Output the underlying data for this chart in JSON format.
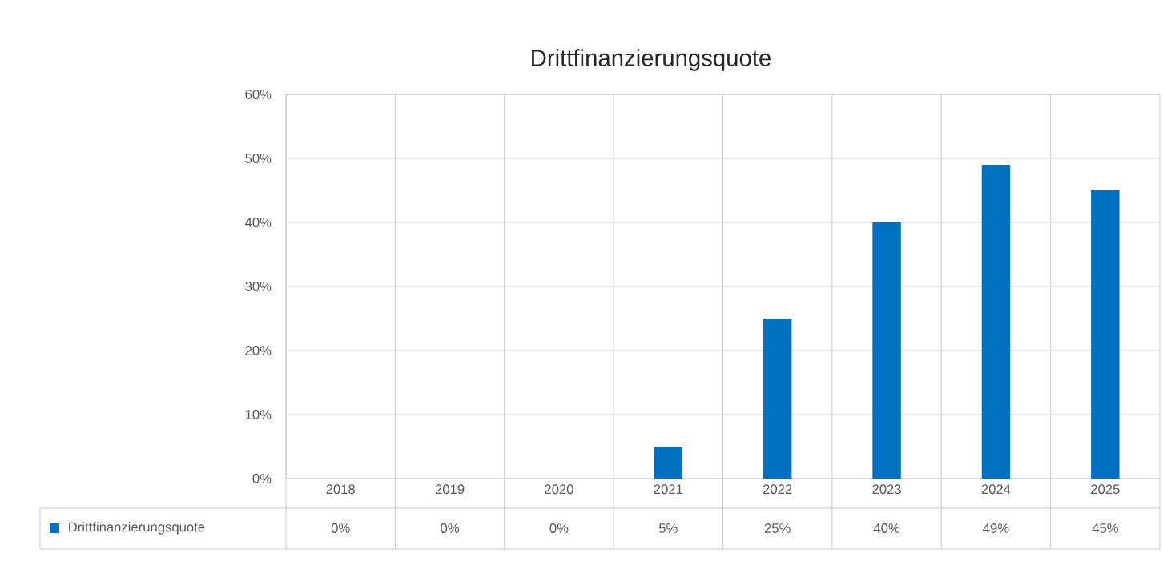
{
  "chart_data": {
    "type": "bar",
    "title": "Drittfinanzierungsquote",
    "categories": [
      "2018",
      "2019",
      "2020",
      "2021",
      "2022",
      "2023",
      "2024",
      "2025"
    ],
    "series": [
      {
        "name": "Drittfinanzierungsquote",
        "color": "#0070c0",
        "values": [
          0,
          0,
          0,
          5,
          25,
          40,
          49,
          45
        ],
        "value_labels": [
          "0%",
          "0%",
          "0%",
          "5%",
          "25%",
          "40%",
          "49%",
          "45%"
        ]
      }
    ],
    "ylim": [
      0,
      60
    ],
    "yticks": [
      {
        "value": 0,
        "label": "0%"
      },
      {
        "value": 10,
        "label": "10%"
      },
      {
        "value": 20,
        "label": "20%"
      },
      {
        "value": 30,
        "label": "30%"
      },
      {
        "value": 40,
        "label": "40%"
      },
      {
        "value": 50,
        "label": "50%"
      },
      {
        "value": 60,
        "label": "60%"
      }
    ],
    "grid": true,
    "legend": "bottom"
  }
}
